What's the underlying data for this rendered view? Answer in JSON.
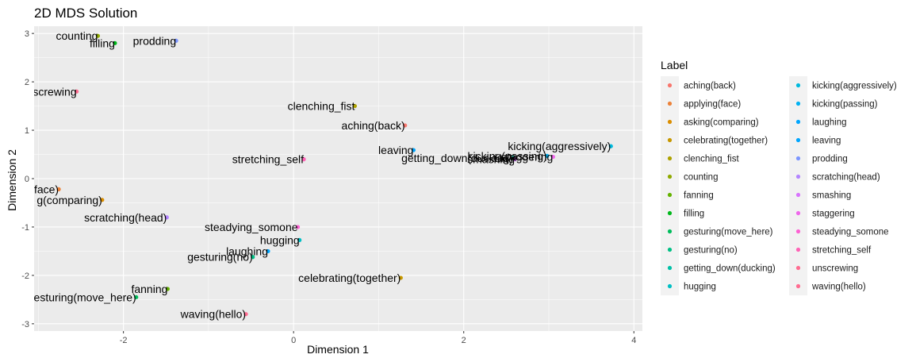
{
  "chart_data": {
    "type": "scatter",
    "title": "2D MDS Solution",
    "xlabel": "Dimension 1",
    "ylabel": "Dimension 2",
    "xlim": [
      -3.05,
      4.1
    ],
    "ylim": [
      -3.15,
      3.15
    ],
    "x_ticks": [
      -2,
      0,
      2,
      4
    ],
    "y_ticks": [
      -3,
      -2,
      -1,
      0,
      1,
      2,
      3
    ],
    "grid": true,
    "legend_title": "Label",
    "legend_position": "right",
    "points": [
      {
        "label": "aching(back)",
        "x": 1.31,
        "y": 1.1,
        "color": "#F8766D"
      },
      {
        "label": "applying(face)",
        "x": -2.76,
        "y": -0.22,
        "color": "#EC8239"
      },
      {
        "label": "asking(comparing)",
        "x": -2.25,
        "y": -0.44,
        "color": "#DB8E00"
      },
      {
        "label": "celebrating(together)",
        "x": 1.26,
        "y": -2.05,
        "color": "#C79800"
      },
      {
        "label": "clenching_fist",
        "x": 0.72,
        "y": 1.5,
        "color": "#AEA200"
      },
      {
        "label": "counting",
        "x": -2.3,
        "y": 2.95,
        "color": "#8FAA00"
      },
      {
        "label": "fanning",
        "x": -1.48,
        "y": -2.28,
        "color": "#64B200"
      },
      {
        "label": "filling",
        "x": -2.1,
        "y": 2.8,
        "color": "#00B81B"
      },
      {
        "label": "gesturing(move_here)",
        "x": -1.85,
        "y": -2.45,
        "color": "#00BD5C"
      },
      {
        "label": "gesturing(no)",
        "x": -0.48,
        "y": -1.62,
        "color": "#00C085"
      },
      {
        "label": "getting_down(ducking)",
        "x": 2.58,
        "y": 0.43,
        "color": "#00C1A7"
      },
      {
        "label": "hugging",
        "x": 0.07,
        "y": -1.27,
        "color": "#00BFC4"
      },
      {
        "label": "kicking(aggressively)",
        "x": 3.73,
        "y": 0.67,
        "color": "#00BADE"
      },
      {
        "label": "kicking(passing)",
        "x": 2.98,
        "y": 0.47,
        "color": "#00B2F3"
      },
      {
        "label": "laughing",
        "x": -0.3,
        "y": -1.5,
        "color": "#00A6FF"
      },
      {
        "label": "leaving",
        "x": 1.41,
        "y": 0.59,
        "color": "#00A6FF"
      },
      {
        "label": "prodding",
        "x": -1.38,
        "y": 2.85,
        "color": "#7C96FF"
      },
      {
        "label": "scratching(head)",
        "x": -1.49,
        "y": -0.8,
        "color": "#B385FF"
      },
      {
        "label": "smashing",
        "x": 2.6,
        "y": 0.4,
        "color": "#D874FD"
      },
      {
        "label": "staggering",
        "x": 3.05,
        "y": 0.45,
        "color": "#EF67EB"
      },
      {
        "label": "steadying_somone",
        "x": 0.05,
        "y": -1.0,
        "color": "#FD61D3"
      },
      {
        "label": "stretching_self",
        "x": 0.12,
        "y": 0.4,
        "color": "#FF63B6"
      },
      {
        "label": "unscrewing",
        "x": -2.55,
        "y": 1.8,
        "color": "#FF6C91"
      },
      {
        "label": "waving(hello)",
        "x": -0.56,
        "y": -2.8,
        "color": "#FF6C91"
      }
    ],
    "point_label_text": [
      {
        "text": "aching(back)",
        "x": 1.31,
        "y": 1.1
      },
      {
        "text": "(face)",
        "x": -2.76,
        "y": -0.22
      },
      {
        "text": "g(comparing)",
        "x": -2.25,
        "y": -0.44
      },
      {
        "text": "celebrating(together)",
        "x": 1.26,
        "y": -2.05
      },
      {
        "text": "clenching_fist",
        "x": 0.72,
        "y": 1.5
      },
      {
        "text": "counting",
        "x": -2.3,
        "y": 2.95
      },
      {
        "text": "fanning",
        "x": -1.48,
        "y": -2.28
      },
      {
        "text": "filling",
        "x": -2.1,
        "y": 2.8
      },
      {
        "text": "esturing(move_here)",
        "x": -1.85,
        "y": -2.45
      },
      {
        "text": "gesturing(no)",
        "x": -0.48,
        "y": -1.62
      },
      {
        "text": "getting_down(ducking)",
        "x": 2.58,
        "y": 0.43
      },
      {
        "text": "hugging",
        "x": 0.07,
        "y": -1.27
      },
      {
        "text": "kicking(aggressively)",
        "x": 3.73,
        "y": 0.67
      },
      {
        "text": "kicking(passing)",
        "x": 2.98,
        "y": 0.47
      },
      {
        "text": "laughing",
        "x": -0.3,
        "y": -1.5
      },
      {
        "text": "leaving",
        "x": 1.41,
        "y": 0.59
      },
      {
        "text": "prodding",
        "x": -1.38,
        "y": 2.85
      },
      {
        "text": "scratching(head)",
        "x": -1.49,
        "y": -0.8
      },
      {
        "text": "smashing",
        "x": 2.6,
        "y": 0.4
      },
      {
        "text": "staggering",
        "x": 3.05,
        "y": 0.45
      },
      {
        "text": "steadying_somone",
        "x": 0.05,
        "y": -1.0
      },
      {
        "text": "stretching_self",
        "x": 0.12,
        "y": 0.4
      },
      {
        "text": "screwing",
        "x": -2.55,
        "y": 1.8
      },
      {
        "text": "waving(hello)",
        "x": -0.56,
        "y": -2.8
      }
    ]
  },
  "colors": {
    "panel_background": "#EBEBEB",
    "grid_major": "#FFFFFF"
  }
}
